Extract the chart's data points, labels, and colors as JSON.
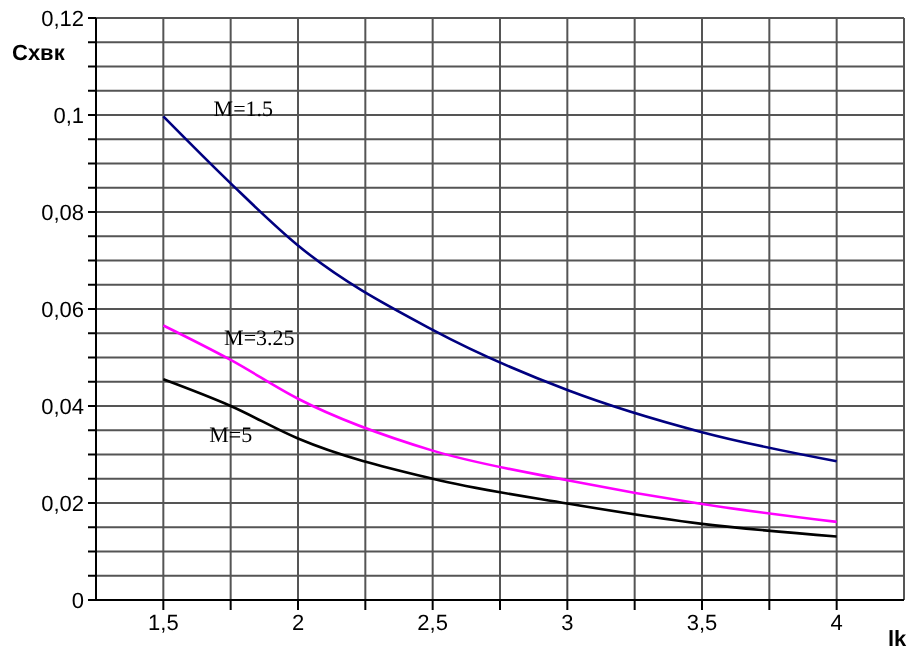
{
  "chart_data": {
    "type": "line",
    "xlabel": "lk",
    "ylabel": "Cхвк",
    "x": [
      1.5,
      1.75,
      2,
      2.5,
      3,
      3.5,
      4
    ],
    "series": [
      {
        "name": "M=1.5",
        "color": "#000080",
        "values": [
          0.0997,
          0.0859,
          0.0731,
          0.0557,
          0.0433,
          0.0346,
          0.0286
        ]
      },
      {
        "name": "M=3.25",
        "color": "#ff00ff",
        "values": [
          0.0566,
          0.0495,
          0.0415,
          0.0308,
          0.0247,
          0.0198,
          0.0161
        ]
      },
      {
        "name": "M=5",
        "color": "#000000",
        "values": [
          0.0455,
          0.04,
          0.0333,
          0.025,
          0.0199,
          0.0157,
          0.0131
        ]
      }
    ],
    "xlim": [
      1.25,
      4.25
    ],
    "xticks": [
      {
        "value": 1.5,
        "label": "1,5"
      },
      {
        "value": 1.75,
        "label": null
      },
      2,
      {
        "value": 2.25,
        "label": null
      },
      {
        "value": 2.5,
        "label": "2,5"
      },
      {
        "value": 2.75,
        "label": null
      },
      3,
      {
        "value": 3.25,
        "label": null
      },
      {
        "value": 3.5,
        "label": "3,5"
      },
      {
        "value": 3.75,
        "label": null
      },
      4
    ],
    "ylim": [
      0,
      0.12
    ],
    "yticks": [
      0,
      {
        "value": 0.005,
        "label": null
      },
      {
        "value": 0.01,
        "label": null
      },
      {
        "value": 0.015,
        "label": null
      },
      {
        "value": 0.02,
        "label": "0,02"
      },
      {
        "value": 0.025,
        "label": null
      },
      {
        "value": 0.03,
        "label": null
      },
      {
        "value": 0.035,
        "label": null
      },
      {
        "value": 0.04,
        "label": "0,04"
      },
      {
        "value": 0.045,
        "label": null
      },
      {
        "value": 0.05,
        "label": null
      },
      {
        "value": 0.055,
        "label": null
      },
      {
        "value": 0.06,
        "label": "0,06"
      },
      {
        "value": 0.065,
        "label": null
      },
      {
        "value": 0.07,
        "label": null
      },
      {
        "value": 0.075,
        "label": null
      },
      {
        "value": 0.08,
        "label": "0,08"
      },
      {
        "value": 0.085,
        "label": null
      },
      {
        "value": 0.09,
        "label": null
      },
      {
        "value": 0.095,
        "label": null
      },
      {
        "value": 0.1,
        "label": "0,1"
      },
      {
        "value": 0.105,
        "label": null
      },
      {
        "value": 0.11,
        "label": null
      },
      {
        "value": 0.115,
        "label": null
      },
      {
        "value": 0.12,
        "label": "0,12"
      }
    ],
    "grid": true,
    "legend": false,
    "marker": "none",
    "line_style": "solid"
  }
}
